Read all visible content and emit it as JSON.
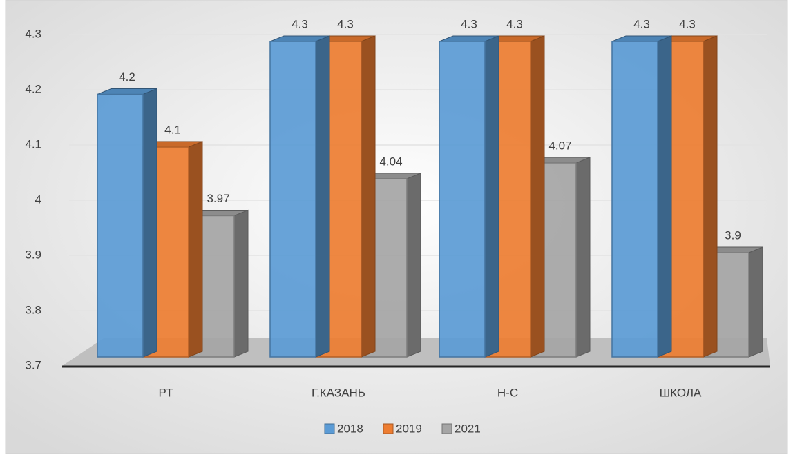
{
  "chart_data": {
    "type": "bar",
    "categories": [
      "РТ",
      "Г.КАЗАНЬ",
      "Н-С",
      "ШКОЛА"
    ],
    "series": [
      {
        "name": "2018",
        "color": "#5b9bd5",
        "values": [
          4.2,
          4.3,
          4.3,
          4.3
        ]
      },
      {
        "name": "2019",
        "color": "#ed7d31",
        "values": [
          4.1,
          4.3,
          4.3,
          4.3
        ]
      },
      {
        "name": "2021",
        "color": "#a5a5a5",
        "values": [
          3.97,
          4.04,
          4.07,
          3.9
        ]
      }
    ],
    "ylim": [
      3.7,
      4.3
    ],
    "yticks": [
      3.7,
      3.8,
      3.9,
      4,
      4.1,
      4.2,
      4.3
    ],
    "grid": true,
    "legend": "bottom"
  }
}
